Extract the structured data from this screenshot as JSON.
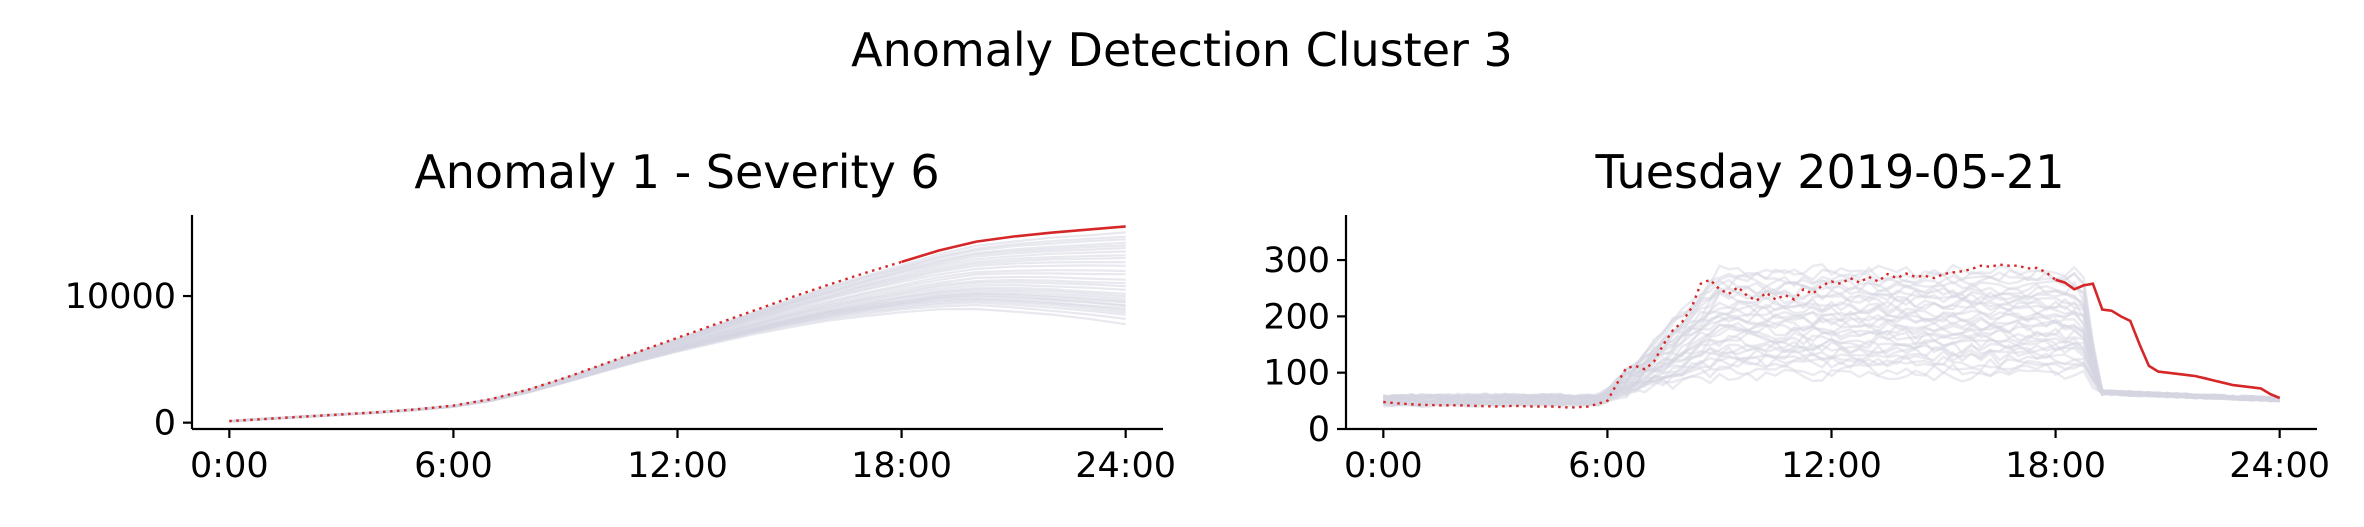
{
  "figure": {
    "title": "Anomaly Detection Cluster 3",
    "colors": {
      "background_series": "#d6d6e2",
      "highlight": "#d62728"
    }
  },
  "chart_data": [
    {
      "type": "line",
      "title": "Anomaly 1 - Severity 6",
      "xlabel": "",
      "ylabel": "",
      "xlim": [
        -1,
        25
      ],
      "ylim": [
        -500,
        16400
      ],
      "x_ticks": [
        0,
        6,
        12,
        18,
        24
      ],
      "x_tick_labels": [
        "0:00",
        "6:00",
        "12:00",
        "18:00",
        "24:00"
      ],
      "y_ticks": [
        0,
        10000
      ],
      "y_tick_labels": [
        "0",
        "10000"
      ],
      "highlight_series": {
        "style_note": "dotted until 18:00, solid after",
        "x": [
          0,
          1,
          2,
          3,
          4,
          5,
          6,
          7,
          8,
          9,
          10,
          11,
          12,
          13,
          14,
          15,
          16,
          17,
          18,
          19,
          20,
          21,
          22,
          23,
          24
        ],
        "y": [
          120,
          300,
          480,
          650,
          830,
          1050,
          1350,
          1850,
          2600,
          3550,
          4600,
          5650,
          6700,
          7750,
          8800,
          9850,
          10850,
          11800,
          12700,
          13600,
          14300,
          14700,
          15000,
          15250,
          15500
        ]
      },
      "background_series": {
        "count": 30,
        "x": [
          0,
          24
        ],
        "final_values": [
          7800,
          8200,
          8500,
          8700,
          8900,
          9000,
          9200,
          9300,
          9500,
          9600,
          9800,
          10000,
          10200,
          10500,
          10800,
          11000,
          11300,
          11700,
          12000,
          12400,
          12700,
          13000,
          13200,
          13500,
          13800,
          14000,
          14200,
          14500,
          14700,
          15000
        ]
      }
    },
    {
      "type": "line",
      "title": "Tuesday 2019-05-21",
      "xlabel": "",
      "ylabel": "",
      "xlim": [
        -1,
        25
      ],
      "ylim": [
        0,
        380
      ],
      "x_ticks": [
        0,
        6,
        12,
        18,
        24
      ],
      "x_tick_labels": [
        "0:00",
        "6:00",
        "12:00",
        "18:00",
        "24:00"
      ],
      "y_ticks": [
        0,
        100,
        200,
        300
      ],
      "y_tick_labels": [
        "0",
        "100",
        "200",
        "300"
      ],
      "highlight_series": {
        "style_note": "dotted until 18:00, solid after",
        "x": [
          0,
          0.5,
          1,
          1.5,
          2,
          2.5,
          3,
          3.5,
          4,
          4.5,
          5,
          5.5,
          6,
          6.25,
          6.5,
          6.75,
          7,
          7.25,
          7.5,
          7.75,
          8,
          8.25,
          8.5,
          8.75,
          9,
          9.25,
          9.5,
          9.75,
          10,
          10.25,
          10.5,
          10.75,
          11,
          11.25,
          11.5,
          11.75,
          12,
          12.25,
          12.5,
          12.75,
          13,
          13.25,
          13.5,
          13.75,
          14,
          14.25,
          14.5,
          14.75,
          15,
          15.25,
          15.5,
          15.75,
          16,
          16.25,
          16.5,
          16.75,
          17,
          17.25,
          17.5,
          17.75,
          18,
          18.25,
          18.5,
          18.75,
          19,
          19.25,
          19.5,
          19.75,
          20,
          20.25,
          20.5,
          20.75,
          21,
          21.25,
          21.5,
          21.75,
          22,
          22.25,
          22.5,
          22.75,
          23,
          23.25,
          23.5,
          23.75,
          24
        ],
        "y": [
          48,
          45,
          43,
          42,
          42,
          41,
          40,
          41,
          40,
          40,
          38,
          40,
          50,
          80,
          108,
          112,
          106,
          120,
          150,
          175,
          190,
          215,
          258,
          265,
          248,
          240,
          252,
          236,
          228,
          242,
          230,
          238,
          230,
          248,
          240,
          255,
          262,
          258,
          268,
          260,
          270,
          262,
          275,
          268,
          276,
          270,
          272,
          268,
          275,
          278,
          280,
          284,
          290,
          288,
          292,
          290,
          290,
          285,
          286,
          278,
          265,
          260,
          248,
          255,
          258,
          212,
          210,
          200,
          192,
          150,
          112,
          102,
          100,
          98,
          96,
          94,
          90,
          86,
          82,
          78,
          76,
          74,
          72,
          62,
          55
        ]
      },
      "background_series": {
        "count": 35,
        "plateau_levels": [
          95,
          105,
          115,
          120,
          125,
          130,
          135,
          140,
          145,
          150,
          155,
          160,
          165,
          170,
          175,
          180,
          185,
          190,
          195,
          200,
          205,
          210,
          215,
          220,
          225,
          230,
          235,
          240,
          245,
          250,
          255,
          262,
          268,
          275,
          282
        ]
      }
    }
  ]
}
